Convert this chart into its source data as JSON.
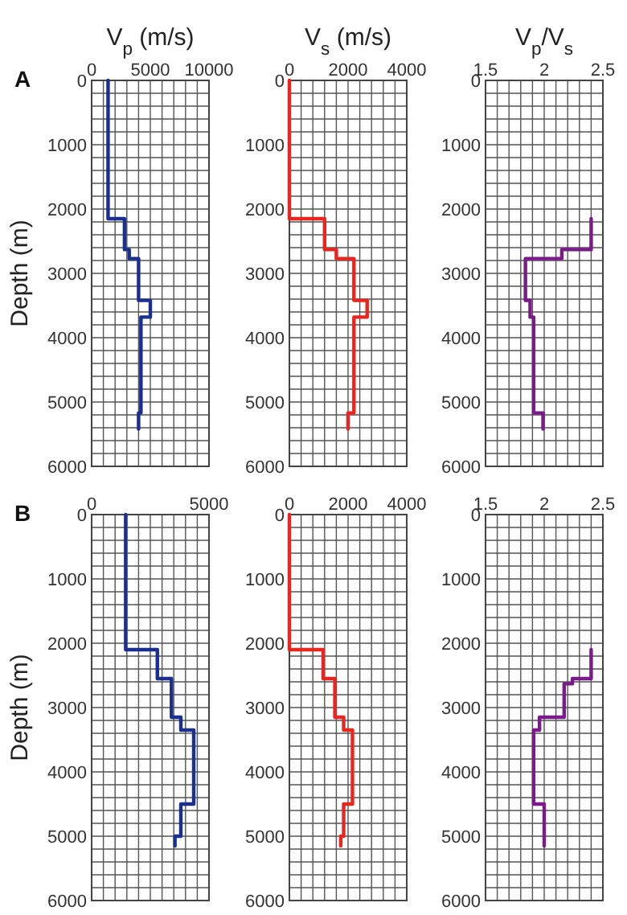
{
  "chart_data": [
    {
      "type": "line",
      "title": "V$_{p}$ (m/s)",
      "ylabel": "Depth (m)",
      "annotations": [
        "A"
      ],
      "grid": true,
      "xlim": [
        0,
        10000
      ],
      "xticks": [
        0,
        {
          "value": 1000,
          "label": null
        },
        {
          "value": 2000,
          "label": null
        },
        {
          "value": 3000,
          "label": null
        },
        {
          "value": 4000,
          "label": null
        },
        5000,
        {
          "value": 6000,
          "label": null
        },
        {
          "value": 7000,
          "label": null
        },
        {
          "value": 8000,
          "label": null
        },
        {
          "value": 9000,
          "label": null
        },
        10000
      ],
      "ylim": [
        6000,
        0
      ],
      "yticks": [
        0,
        {
          "value": 200,
          "label": null
        },
        {
          "value": 400,
          "label": null
        },
        {
          "value": 600,
          "label": null
        },
        {
          "value": 800,
          "label": null
        },
        1000,
        {
          "value": 1200,
          "label": null
        },
        {
          "value": 1400,
          "label": null
        },
        {
          "value": 1600,
          "label": null
        },
        {
          "value": 1800,
          "label": null
        },
        2000,
        {
          "value": 2200,
          "label": null
        },
        {
          "value": 2400,
          "label": null
        },
        {
          "value": 2600,
          "label": null
        },
        {
          "value": 2800,
          "label": null
        },
        3000,
        {
          "value": 3200,
          "label": null
        },
        {
          "value": 3400,
          "label": null
        },
        {
          "value": 3600,
          "label": null
        },
        {
          "value": 3800,
          "label": null
        },
        4000,
        {
          "value": 4200,
          "label": null
        },
        {
          "value": 4400,
          "label": null
        },
        {
          "value": 4600,
          "label": null
        },
        {
          "value": 4800,
          "label": null
        },
        5000,
        {
          "value": 5200,
          "label": null
        },
        {
          "value": 5400,
          "label": null
        },
        {
          "value": 5600,
          "label": null
        },
        {
          "value": 5800,
          "label": null
        },
        6000
      ],
      "series": [
        {
          "color": "#1a2f8f",
          "x": [
            1400,
            1400,
            2800,
            2800,
            3200,
            3200,
            4000,
            4000,
            5000,
            5000,
            4200,
            4200,
            4000,
            4000
          ],
          "values": [
            0,
            2150,
            2150,
            2630,
            2630,
            2770,
            2770,
            3420,
            3420,
            3680,
            3680,
            5170,
            5170,
            5420
          ]
        }
      ]
    },
    {
      "type": "line",
      "title": "V$_{s}$ (m/s)",
      "grid": true,
      "xlim": [
        0,
        4000
      ],
      "xticks": [
        0,
        {
          "value": 400,
          "label": null
        },
        {
          "value": 800,
          "label": null
        },
        {
          "value": 1200,
          "label": null
        },
        {
          "value": 1600,
          "label": null
        },
        2000,
        {
          "value": 2400,
          "label": null
        },
        {
          "value": 2800,
          "label": null
        },
        {
          "value": 3200,
          "label": null
        },
        {
          "value": 3600,
          "label": null
        },
        4000
      ],
      "ylim": [
        6000,
        0
      ],
      "yticks": [
        0,
        {
          "value": 200,
          "label": null
        },
        {
          "value": 400,
          "label": null
        },
        {
          "value": 600,
          "label": null
        },
        {
          "value": 800,
          "label": null
        },
        1000,
        {
          "value": 1200,
          "label": null
        },
        {
          "value": 1400,
          "label": null
        },
        {
          "value": 1600,
          "label": null
        },
        {
          "value": 1800,
          "label": null
        },
        2000,
        {
          "value": 2200,
          "label": null
        },
        {
          "value": 2400,
          "label": null
        },
        {
          "value": 2600,
          "label": null
        },
        {
          "value": 2800,
          "label": null
        },
        3000,
        {
          "value": 3200,
          "label": null
        },
        {
          "value": 3400,
          "label": null
        },
        {
          "value": 3600,
          "label": null
        },
        {
          "value": 3800,
          "label": null
        },
        4000,
        {
          "value": 4200,
          "label": null
        },
        {
          "value": 4400,
          "label": null
        },
        {
          "value": 4600,
          "label": null
        },
        {
          "value": 4800,
          "label": null
        },
        5000,
        {
          "value": 5200,
          "label": null
        },
        {
          "value": 5400,
          "label": null
        },
        {
          "value": 5600,
          "label": null
        },
        {
          "value": 5800,
          "label": null
        },
        6000
      ],
      "series": [
        {
          "color": "#e8251f",
          "x": [
            0,
            0,
            1200,
            1200,
            1600,
            1600,
            2200,
            2200,
            2650,
            2650,
            2200,
            2200,
            2000,
            2000
          ],
          "values": [
            0,
            2150,
            2150,
            2630,
            2630,
            2770,
            2770,
            3420,
            3420,
            3680,
            3680,
            5170,
            5170,
            5420
          ]
        }
      ]
    },
    {
      "type": "line",
      "title": "V$_{p}$/V$_{s}$",
      "grid": true,
      "xlim": [
        1.5,
        2.5
      ],
      "xticks": [
        1.5,
        {
          "value": 1.6,
          "label": null
        },
        {
          "value": 1.7,
          "label": null
        },
        {
          "value": 1.8,
          "label": null
        },
        {
          "value": 1.9,
          "label": null
        },
        2,
        {
          "value": 2.1,
          "label": null
        },
        {
          "value": 2.2,
          "label": null
        },
        {
          "value": 2.3,
          "label": null
        },
        {
          "value": 2.4,
          "label": null
        },
        2.5
      ],
      "ylim": [
        6000,
        0
      ],
      "yticks": [
        0,
        {
          "value": 200,
          "label": null
        },
        {
          "value": 400,
          "label": null
        },
        {
          "value": 600,
          "label": null
        },
        {
          "value": 800,
          "label": null
        },
        1000,
        {
          "value": 1200,
          "label": null
        },
        {
          "value": 1400,
          "label": null
        },
        {
          "value": 1600,
          "label": null
        },
        {
          "value": 1800,
          "label": null
        },
        2000,
        {
          "value": 2200,
          "label": null
        },
        {
          "value": 2400,
          "label": null
        },
        {
          "value": 2600,
          "label": null
        },
        {
          "value": 2800,
          "label": null
        },
        3000,
        {
          "value": 3200,
          "label": null
        },
        {
          "value": 3400,
          "label": null
        },
        {
          "value": 3600,
          "label": null
        },
        {
          "value": 3800,
          "label": null
        },
        4000,
        {
          "value": 4200,
          "label": null
        },
        {
          "value": 4400,
          "label": null
        },
        {
          "value": 4600,
          "label": null
        },
        {
          "value": 4800,
          "label": null
        },
        5000,
        {
          "value": 5200,
          "label": null
        },
        {
          "value": 5400,
          "label": null
        },
        {
          "value": 5600,
          "label": null
        },
        {
          "value": 5800,
          "label": null
        },
        6000
      ],
      "series": [
        {
          "color": "#7b1a8a",
          "x": [
            2.4,
            2.4,
            2.15,
            2.15,
            1.84,
            1.84,
            1.88,
            1.88,
            1.91,
            1.91,
            1.99,
            1.99
          ],
          "values": [
            2150,
            2630,
            2630,
            2770,
            2770,
            3420,
            3420,
            3680,
            3680,
            5170,
            5170,
            5420
          ]
        }
      ]
    },
    {
      "type": "line",
      "ylabel": "Depth (m)",
      "annotations": [
        "B"
      ],
      "grid": true,
      "xlim": [
        0,
        5000
      ],
      "xticks": [
        0,
        {
          "value": 500,
          "label": null
        },
        {
          "value": 1000,
          "label": null
        },
        {
          "value": 1500,
          "label": null
        },
        {
          "value": 2000,
          "label": null
        },
        {
          "value": 2500,
          "label": null
        },
        {
          "value": 3000,
          "label": null
        },
        {
          "value": 3500,
          "label": null
        },
        {
          "value": 4000,
          "label": null
        },
        {
          "value": 4500,
          "label": null
        },
        5000
      ],
      "ylim": [
        6000,
        0
      ],
      "yticks": [
        0,
        {
          "value": 200,
          "label": null
        },
        {
          "value": 400,
          "label": null
        },
        {
          "value": 600,
          "label": null
        },
        {
          "value": 800,
          "label": null
        },
        1000,
        {
          "value": 1200,
          "label": null
        },
        {
          "value": 1400,
          "label": null
        },
        {
          "value": 1600,
          "label": null
        },
        {
          "value": 1800,
          "label": null
        },
        2000,
        {
          "value": 2200,
          "label": null
        },
        {
          "value": 2400,
          "label": null
        },
        {
          "value": 2600,
          "label": null
        },
        {
          "value": 2800,
          "label": null
        },
        3000,
        {
          "value": 3200,
          "label": null
        },
        {
          "value": 3400,
          "label": null
        },
        {
          "value": 3600,
          "label": null
        },
        {
          "value": 3800,
          "label": null
        },
        4000,
        {
          "value": 4200,
          "label": null
        },
        {
          "value": 4400,
          "label": null
        },
        {
          "value": 4600,
          "label": null
        },
        {
          "value": 4800,
          "label": null
        },
        5000,
        {
          "value": 5200,
          "label": null
        },
        {
          "value": 5400,
          "label": null
        },
        {
          "value": 5600,
          "label": null
        },
        {
          "value": 5800,
          "label": null
        },
        6000
      ],
      "series": [
        {
          "color": "#1a2f8f",
          "x": [
            1450,
            1450,
            2800,
            2800,
            3400,
            3400,
            3800,
            3800,
            4350,
            4350,
            3800,
            3800,
            3550,
            3550
          ],
          "values": [
            0,
            2100,
            2100,
            2550,
            2550,
            3150,
            3150,
            3350,
            3350,
            4500,
            4500,
            5000,
            5000,
            5150
          ]
        }
      ]
    },
    {
      "type": "line",
      "grid": true,
      "xlim": [
        0,
        4000
      ],
      "xticks": [
        0,
        {
          "value": 400,
          "label": null
        },
        {
          "value": 800,
          "label": null
        },
        {
          "value": 1200,
          "label": null
        },
        {
          "value": 1600,
          "label": null
        },
        2000,
        {
          "value": 2400,
          "label": null
        },
        {
          "value": 2800,
          "label": null
        },
        {
          "value": 3200,
          "label": null
        },
        {
          "value": 3600,
          "label": null
        },
        4000
      ],
      "ylim": [
        6000,
        0
      ],
      "yticks": [
        0,
        {
          "value": 200,
          "label": null
        },
        {
          "value": 400,
          "label": null
        },
        {
          "value": 600,
          "label": null
        },
        {
          "value": 800,
          "label": null
        },
        1000,
        {
          "value": 1200,
          "label": null
        },
        {
          "value": 1400,
          "label": null
        },
        {
          "value": 1600,
          "label": null
        },
        {
          "value": 1800,
          "label": null
        },
        2000,
        {
          "value": 2200,
          "label": null
        },
        {
          "value": 2400,
          "label": null
        },
        {
          "value": 2600,
          "label": null
        },
        {
          "value": 2800,
          "label": null
        },
        3000,
        {
          "value": 3200,
          "label": null
        },
        {
          "value": 3400,
          "label": null
        },
        {
          "value": 3600,
          "label": null
        },
        {
          "value": 3800,
          "label": null
        },
        4000,
        {
          "value": 4200,
          "label": null
        },
        {
          "value": 4400,
          "label": null
        },
        {
          "value": 4600,
          "label": null
        },
        {
          "value": 4800,
          "label": null
        },
        5000,
        {
          "value": 5200,
          "label": null
        },
        {
          "value": 5400,
          "label": null
        },
        {
          "value": 5600,
          "label": null
        },
        {
          "value": 5800,
          "label": null
        },
        6000
      ],
      "series": [
        {
          "color": "#e8251f",
          "x": [
            0,
            0,
            1150,
            1150,
            1550,
            1550,
            1850,
            1850,
            2150,
            2150,
            1850,
            1850,
            1750,
            1750
          ],
          "values": [
            0,
            2100,
            2100,
            2550,
            2550,
            3150,
            3150,
            3350,
            3350,
            4500,
            4500,
            5000,
            5000,
            5150
          ]
        }
      ]
    },
    {
      "type": "line",
      "grid": true,
      "xlim": [
        1.5,
        2.5
      ],
      "xticks": [
        1.5,
        {
          "value": 1.6,
          "label": null
        },
        {
          "value": 1.7,
          "label": null
        },
        {
          "value": 1.8,
          "label": null
        },
        {
          "value": 1.9,
          "label": null
        },
        2,
        {
          "value": 2.1,
          "label": null
        },
        {
          "value": 2.2,
          "label": null
        },
        {
          "value": 2.3,
          "label": null
        },
        {
          "value": 2.4,
          "label": null
        },
        2.5
      ],
      "ylim": [
        6000,
        0
      ],
      "yticks": [
        0,
        {
          "value": 200,
          "label": null
        },
        {
          "value": 400,
          "label": null
        },
        {
          "value": 600,
          "label": null
        },
        {
          "value": 800,
          "label": null
        },
        1000,
        {
          "value": 1200,
          "label": null
        },
        {
          "value": 1400,
          "label": null
        },
        {
          "value": 1600,
          "label": null
        },
        {
          "value": 1800,
          "label": null
        },
        2000,
        {
          "value": 2200,
          "label": null
        },
        {
          "value": 2400,
          "label": null
        },
        {
          "value": 2600,
          "label": null
        },
        {
          "value": 2800,
          "label": null
        },
        3000,
        {
          "value": 3200,
          "label": null
        },
        {
          "value": 3400,
          "label": null
        },
        {
          "value": 3600,
          "label": null
        },
        {
          "value": 3800,
          "label": null
        },
        4000,
        {
          "value": 4200,
          "label": null
        },
        {
          "value": 4400,
          "label": null
        },
        {
          "value": 4600,
          "label": null
        },
        {
          "value": 4800,
          "label": null
        },
        5000,
        {
          "value": 5200,
          "label": null
        },
        {
          "value": 5400,
          "label": null
        },
        {
          "value": 5600,
          "label": null
        },
        {
          "value": 5800,
          "label": null
        },
        6000
      ],
      "series": [
        {
          "color": "#7b1a8a",
          "x": [
            2.4,
            2.4,
            2.24,
            2.24,
            2.17,
            2.17,
            1.96,
            1.96,
            1.91,
            1.91,
            2.0,
            2.0
          ],
          "values": [
            2100,
            2550,
            2550,
            2630,
            2630,
            3150,
            3150,
            3350,
            3350,
            4500,
            4500,
            5150
          ]
        }
      ]
    }
  ]
}
